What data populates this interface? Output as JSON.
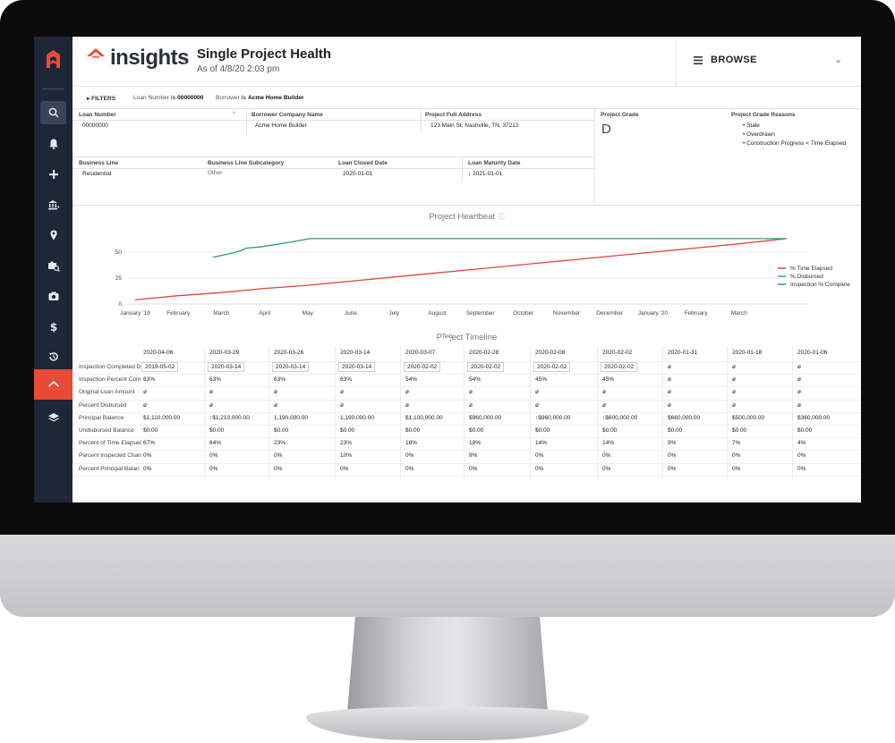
{
  "app": {
    "brand": "insights",
    "page_title": "Single Project Health",
    "subtitle": "As of 4/8/20 2:03 pm",
    "browse_label": "BROWSE"
  },
  "sidebar": {
    "items": [
      "search-icon",
      "bell-icon",
      "plus-icon",
      "bank-icon",
      "location-pin-icon",
      "camera-search-icon",
      "camera-icon",
      "dollar-icon",
      "history-icon",
      "home-icon",
      "layers-icon"
    ]
  },
  "filters": {
    "label": "FILTERS",
    "loan_text": "Loan Number",
    "is1": "is ",
    "loan_value": "00000000",
    "borrower_text": "Borrower",
    "is2": "is",
    "borrower_value": "Acme Home Builder"
  },
  "project": {
    "loan_number_label": "Loan Number",
    "loan_number": "00000000",
    "borrower_label": "Borrower Company Name",
    "borrower": "Acme Home Builder",
    "address_label": "Project Full Address",
    "address": "123 Main St. Nashville, TN, 37212",
    "grade_label": "Project Grade",
    "grade": "D",
    "reasons_label": "Project Grade Reasons",
    "reasons": [
      "Stale",
      "Overdrawn",
      "Construction Progress < Time Elapsed"
    ],
    "business_line_label": "Business Line",
    "business_line": "Residential",
    "subcategory_label": "Business Line Subcategory",
    "subcategory": "Other",
    "closed_label": "Loan Closed Date",
    "closed": "2020-01-01",
    "maturity_label": "Loan Maturity Date",
    "maturity": "2021-01-01"
  },
  "chart_data": {
    "type": "line",
    "title": "Project Heartbeat",
    "x_labels": [
      "January '19",
      "February",
      "March",
      "April",
      "May",
      "June",
      "July",
      "August",
      "September",
      "October",
      "November",
      "December",
      "January '20",
      "February",
      "March"
    ],
    "yticks": [
      0,
      25,
      50
    ],
    "ylim": [
      0,
      70
    ],
    "legend_position": "right",
    "series": [
      {
        "name": "% Time Elapsed",
        "color": "#e0433f",
        "x": [
          0,
          1,
          2,
          3,
          4,
          5,
          6,
          7,
          8,
          9,
          10,
          11,
          12,
          13,
          14,
          15.1
        ],
        "y": [
          4,
          8,
          11,
          15,
          18,
          22,
          26,
          30,
          34,
          38,
          42,
          46,
          50,
          54,
          58,
          63
        ]
      },
      {
        "name": "% Disbursed",
        "color": "#2f9fd6",
        "x": [],
        "y": []
      },
      {
        "name": "Inspection % Complete",
        "color": "#2e9c6a",
        "x": [
          1.8,
          2.35,
          2.6,
          2.9,
          3.5,
          4.05,
          15.1
        ],
        "y": [
          45,
          50,
          54,
          55,
          59,
          63,
          63
        ]
      }
    ]
  },
  "timeline": {
    "title": "Project Timeline",
    "title_overlay": "Text",
    "columns": [
      "2020-04-06",
      "2020-03-29",
      "2020-03-26",
      "2020-03-14",
      "2020-03-07",
      "2020-02-28",
      "2020-02-08",
      "2020-02-02",
      "2020-01-31",
      "2020-01-18",
      "2020-01-06"
    ],
    "rows": [
      {
        "label": "Inspection Completed D",
        "values": [
          "2019-05-02",
          "2020-03-14",
          "2020-03-14",
          "2020-03-14",
          "2020-02-02",
          "2020-02-02",
          "2020-02-02",
          "2020-02-02",
          "ø",
          "ø",
          "ø"
        ]
      },
      {
        "label": "Inspection Percent Com",
        "values": [
          "63%",
          "63%",
          "63%",
          "63%",
          "54%",
          "54%",
          "45%",
          "45%",
          "ø",
          "ø",
          "ø"
        ]
      },
      {
        "label": "Original Loan Amount",
        "values": [
          "ø",
          "ø",
          "ø",
          "ø",
          "ø",
          "ø",
          "ø",
          "ø",
          "ø",
          "ø",
          "ø"
        ]
      },
      {
        "label": "Percent Disbursed",
        "values": [
          "ø",
          "ø",
          "ø",
          "ø",
          "ø",
          "ø",
          "ø",
          "ø",
          "ø",
          "ø",
          "ø"
        ]
      },
      {
        "label": "Principal Balance",
        "values": [
          "$1,110,000.00",
          "↑$1,210,000.00",
          "1,190,000.00",
          "1,190,000.00",
          "$1,100,000.00",
          "$960,000.00",
          "↑$960,000.00",
          "↑$600,000.00",
          "$660,000.00",
          "$500,000.00",
          "$360,000.00"
        ]
      },
      {
        "label": "Undisbursed Balance",
        "values": [
          "$0.00",
          "$0.00",
          "$0.00",
          "$0.00",
          "$0.00",
          "$0.00",
          "$0.00",
          "$0.00",
          "$0.00",
          "$0.00",
          "$0.00"
        ]
      },
      {
        "label": "Percent of Time Elapsed",
        "values": [
          "67%",
          "64%",
          "23%",
          "23%",
          "18%",
          "18%",
          "14%",
          "14%",
          "9%",
          "7%",
          "4%"
        ]
      },
      {
        "label": "Percent Inspected Chan",
        "values": [
          "0%",
          "0%",
          "0%",
          "10%",
          "0%",
          "9%",
          "0%",
          "0%",
          "0%",
          "0%",
          "0%"
        ]
      },
      {
        "label": "Percent Principal Balan",
        "values": [
          "0%",
          "0%",
          "0%",
          "0%",
          "0%",
          "0%",
          "0%",
          "0%",
          "0%",
          "0%",
          "0%"
        ]
      }
    ]
  }
}
